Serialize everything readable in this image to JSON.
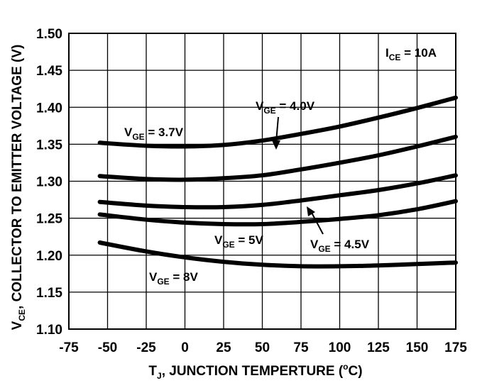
{
  "chart_data": {
    "type": "line",
    "xlabel": {
      "main": "T",
      "sub": "J",
      "rest": ", JUNCTION TEMPERTURE (",
      "deg": "o",
      "unit": "C)"
    },
    "ylabel": {
      "main": "V",
      "sub": "CE",
      "rest": ", COLLECTOR TO EMITTER VOLTAGE (V)"
    },
    "xlim": [
      -75,
      175
    ],
    "ylim": [
      1.1,
      1.5
    ],
    "xticks": [
      -75,
      -50,
      -25,
      0,
      25,
      50,
      75,
      100,
      125,
      150,
      175
    ],
    "yticks": [
      1.1,
      1.15,
      1.2,
      1.25,
      1.3,
      1.35,
      1.4,
      1.45,
      1.5
    ],
    "ytick_labels": [
      "1.10",
      "1.15",
      "1.20",
      "1.25",
      "1.30",
      "1.35",
      "1.40",
      "1.45",
      "1.50"
    ],
    "grid": true,
    "condition": {
      "main": "I",
      "sub": "CE",
      "rest": " = 10A"
    },
    "series": [
      {
        "name": "VGE = 3.7V",
        "x": [
          -55,
          -25,
          0,
          25,
          50,
          75,
          100,
          125,
          150,
          175
        ],
        "y": [
          1.352,
          1.348,
          1.347,
          1.349,
          1.355,
          1.364,
          1.374,
          1.386,
          1.399,
          1.413
        ]
      },
      {
        "name": "VGE = 4.0V",
        "x": [
          -55,
          -25,
          0,
          25,
          50,
          75,
          100,
          125,
          150,
          175
        ],
        "y": [
          1.307,
          1.303,
          1.302,
          1.304,
          1.308,
          1.316,
          1.325,
          1.335,
          1.347,
          1.36
        ]
      },
      {
        "name": "VGE = 4.5V",
        "x": [
          -55,
          -25,
          0,
          25,
          50,
          75,
          100,
          125,
          150,
          175
        ],
        "y": [
          1.272,
          1.267,
          1.265,
          1.265,
          1.268,
          1.274,
          1.281,
          1.288,
          1.297,
          1.308
        ]
      },
      {
        "name": "VGE = 5V",
        "x": [
          -55,
          -25,
          0,
          25,
          50,
          75,
          100,
          125,
          150,
          175
        ],
        "y": [
          1.255,
          1.248,
          1.244,
          1.242,
          1.242,
          1.245,
          1.249,
          1.254,
          1.262,
          1.273
        ]
      },
      {
        "name": "VGE = 8V",
        "x": [
          -55,
          -25,
          0,
          25,
          50,
          75,
          100,
          125,
          150,
          175
        ],
        "y": [
          1.217,
          1.205,
          1.197,
          1.191,
          1.187,
          1.185,
          1.185,
          1.186,
          1.188,
          1.19
        ]
      }
    ],
    "labels": [
      {
        "main": "V",
        "sub": "GE",
        "rest": " = 3.7V"
      },
      {
        "main": "V",
        "sub": "GE",
        "rest": " = 4.0V"
      },
      {
        "main": "V",
        "sub": "GE",
        "rest": " = 5V"
      },
      {
        "main": "V",
        "sub": "GE",
        "rest": " = 4.5V"
      },
      {
        "main": "V",
        "sub": "GE",
        "rest": " = 8V"
      }
    ]
  }
}
